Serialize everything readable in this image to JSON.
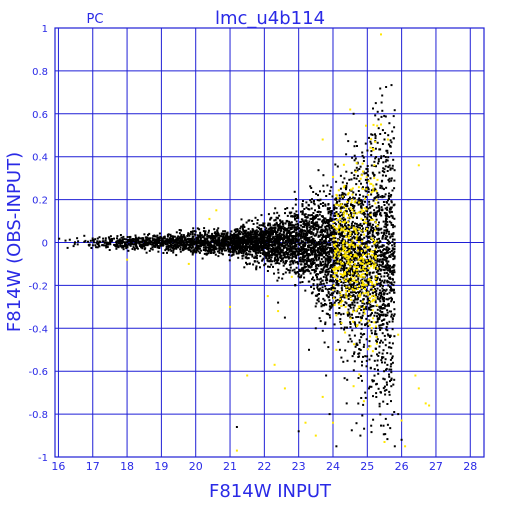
{
  "header": {
    "left_label": "PC",
    "title": "lmc_u4b114"
  },
  "chart_data": {
    "type": "scatter",
    "title": "lmc_u4b114",
    "subtitle": "PC",
    "xlabel": "F814W INPUT",
    "ylabel": "F814W (OBS-INPUT)",
    "xlim": [
      15.9,
      28.4
    ],
    "ylim": [
      -1,
      1
    ],
    "x_ticks": [
      16,
      17,
      18,
      19,
      20,
      21,
      22,
      23,
      24,
      25,
      26,
      27,
      28
    ],
    "y_ticks": [
      -1,
      -0.8,
      -0.6,
      -0.4,
      -0.2,
      0,
      0.2,
      0.4,
      0.6,
      0.8,
      1
    ],
    "y_tick_labels": [
      "-1",
      "-0.8",
      "-0.6",
      "-0.4",
      "-0.2",
      "0",
      "0.2",
      "0.4",
      "0.6",
      "0.8",
      "1"
    ],
    "grid": true,
    "colors": {
      "axes": "#1f1fd6",
      "labels": "#2a2ae6",
      "points_main": "#000000",
      "points_flagged": "#ffe600"
    },
    "series": [],
    "distribution": {
      "description_points": [
        {
          "mag": 16.0,
          "width": 0.02
        },
        {
          "mag": 18.0,
          "width": 0.025
        },
        {
          "mag": 20.0,
          "width": 0.04
        },
        {
          "mag": 21.0,
          "width": 0.05
        },
        {
          "mag": 22.0,
          "width": 0.08
        },
        {
          "mag": 23.0,
          "width": 0.13
        },
        {
          "mag": 24.0,
          "width": 0.22
        },
        {
          "mag": 24.7,
          "width": 0.35
        },
        {
          "mag": 25.5,
          "width": 0.5
        }
      ],
      "cutoff_mag": 25.8
    },
    "outliers_black": [
      [
        24.7,
        0.45
      ],
      [
        24.6,
        0.6
      ],
      [
        24.9,
        0.38
      ],
      [
        25.1,
        -0.3
      ],
      [
        25.3,
        -0.55
      ],
      [
        25.4,
        -0.7
      ],
      [
        25.6,
        -0.85
      ],
      [
        25.8,
        -0.95
      ],
      [
        24.2,
        -0.5
      ],
      [
        23.8,
        -0.62
      ],
      [
        23.5,
        -0.4
      ],
      [
        22.6,
        -0.35
      ],
      [
        21.2,
        -0.86
      ],
      [
        23.0,
        -0.88
      ],
      [
        24.1,
        -0.95
      ],
      [
        26.0,
        -0.92
      ],
      [
        25.9,
        -0.8
      ],
      [
        25.7,
        -0.67
      ],
      [
        24.4,
        -0.75
      ],
      [
        23.9,
        -0.8
      ],
      [
        24.8,
        -0.9
      ],
      [
        22.9,
        -0.2
      ],
      [
        22.4,
        -0.28
      ],
      [
        23.3,
        -0.5
      ]
    ],
    "outliers_yellow": [
      [
        25.4,
        0.97
      ],
      [
        25.6,
        0.48
      ],
      [
        25.4,
        0.55
      ],
      [
        26.5,
        0.36
      ],
      [
        24.5,
        0.62
      ],
      [
        23.7,
        0.48
      ],
      [
        25.2,
        0.3
      ],
      [
        20.6,
        0.15
      ],
      [
        20.4,
        0.11
      ],
      [
        25.9,
        -0.43
      ],
      [
        26.5,
        -0.68
      ],
      [
        26.7,
        -0.75
      ],
      [
        26.4,
        -0.62
      ],
      [
        26.8,
        -0.76
      ],
      [
        24.6,
        -0.67
      ],
      [
        22.3,
        -0.57
      ],
      [
        21.2,
        -0.97
      ],
      [
        23.5,
        -0.9
      ],
      [
        25.5,
        -0.93
      ],
      [
        26.1,
        -0.95
      ],
      [
        22.4,
        -0.32
      ],
      [
        22.1,
        -0.25
      ],
      [
        23.7,
        -0.72
      ],
      [
        24.0,
        -0.84
      ],
      [
        21.0,
        -0.3
      ],
      [
        21.5,
        -0.62
      ],
      [
        23.2,
        -0.84
      ],
      [
        18.0,
        -0.08
      ],
      [
        19.8,
        -0.1
      ],
      [
        22.8,
        -0.16
      ],
      [
        24.1,
        -0.5
      ],
      [
        24.9,
        -0.74
      ],
      [
        26.0,
        -0.83
      ],
      [
        22.6,
        -0.68
      ]
    ]
  }
}
